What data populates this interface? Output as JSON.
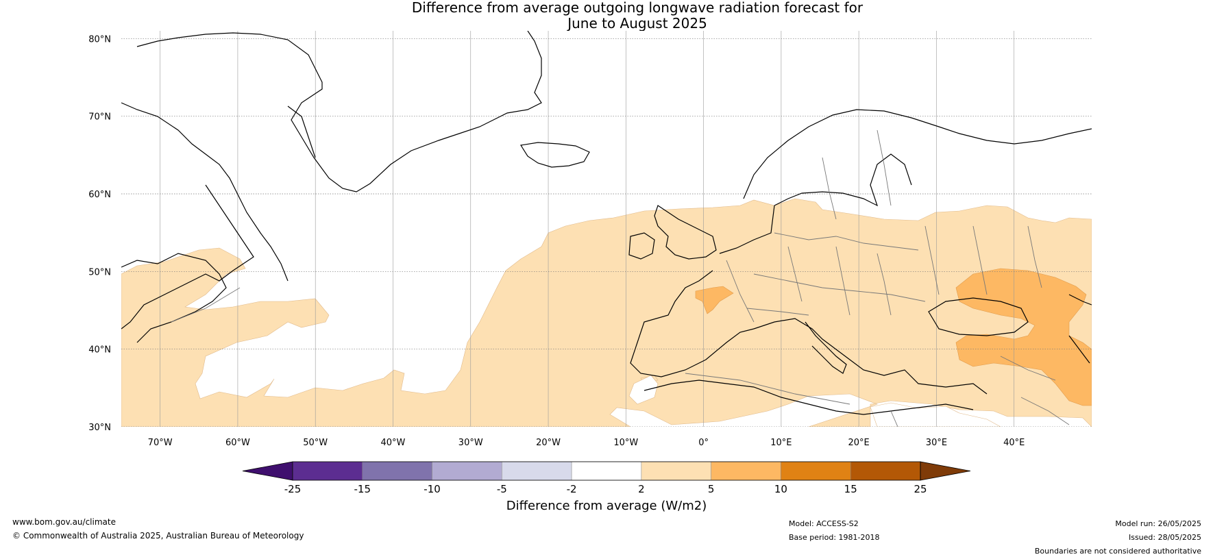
{
  "title": {
    "line1": "Difference from average outgoing longwave radiation forecast for",
    "line2": "June to August 2025"
  },
  "map": {
    "lat_labels": [
      "80°N",
      "70°N",
      "60°N",
      "50°N",
      "40°N",
      "30°N"
    ],
    "lon_labels": [
      "70°W",
      "60°W",
      "50°W",
      "40°W",
      "30°W",
      "20°W",
      "10°W",
      "0°",
      "10°E",
      "20°E",
      "30°E",
      "40°E"
    ],
    "lat_values": [
      80,
      70,
      60,
      50,
      40,
      30
    ],
    "lon_values": [
      -70,
      -60,
      -50,
      -40,
      -30,
      -20,
      -10,
      0,
      10,
      20,
      30,
      40
    ],
    "extent": {
      "lon": [
        -75,
        50
      ],
      "lat": [
        30,
        81
      ]
    }
  },
  "colorbar": {
    "tick_labels": [
      "-25",
      "-15",
      "-10",
      "-5",
      "-2",
      "2",
      "5",
      "10",
      "15",
      "25"
    ],
    "colors": [
      "#3f0f6e",
      "#5c2d91",
      "#8073ac",
      "#b2abd2",
      "#d8daeb",
      "#ffffff",
      "#fde0b3",
      "#fdb863",
      "#e08214",
      "#b35806",
      "#7f3b08"
    ],
    "title": "Difference from average (W/m2)"
  },
  "footer": {
    "website": "www.bom.gov.au/climate",
    "copyright": "© Commonwealth of Australia 2025, Australian Bureau of Meteorology",
    "model": "Model: ACCESS-S2",
    "base_period": "Base period: 1981-2018",
    "model_run": "Model run: 26/05/2025",
    "issued": "Issued: 28/05/2025",
    "disclaimer": "Boundaries are not considered authoritative"
  },
  "colors": {
    "land_outline": "#000000",
    "border": "#777777",
    "anomaly_light": "#fde0b3",
    "anomaly_medium": "#fdb863"
  }
}
